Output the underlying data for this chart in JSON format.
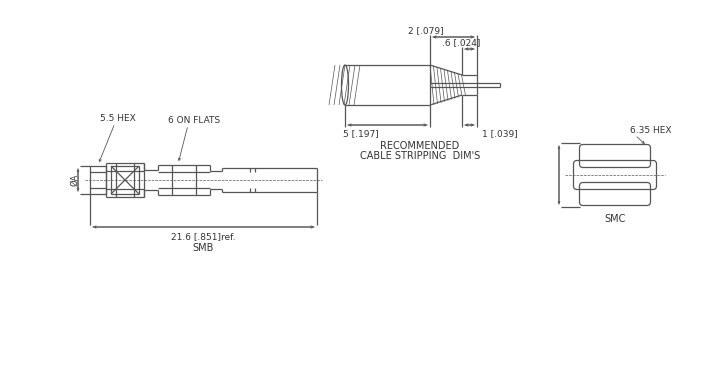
{
  "bg_color": "#ffffff",
  "line_color": "#555555",
  "text_color": "#333333",
  "cable_strip_label1": "RECOMMENDED",
  "cable_strip_label2": "CABLE STRIPPING  DIM'S",
  "dim_2_079": "2 [.079]",
  "dim_06_024": ".6 [.024]",
  "dim_5_197": "5 [.197]",
  "dim_1_039": "1 [.039]",
  "dim_21_6": "21.6 [.851]ref.",
  "label_smb": "SMB",
  "label_smc": "SMC",
  "label_55hex": "5.5 HEX",
  "label_635hex": "6.35 HEX",
  "label_6onflats": "6 ON FLATS",
  "label_phiA": "ØA"
}
